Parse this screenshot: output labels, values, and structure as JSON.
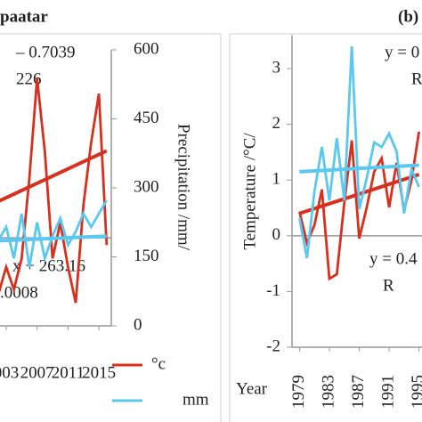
{
  "chart_data": [
    {
      "type": "line",
      "title": "paatar",
      "annotations": [
        "– 0.7039",
        "226",
        "x + 263.16",
        ".0008"
      ],
      "y_label": "Precipitation /mm/",
      "x": [
        2002,
        2003,
        2004,
        2005,
        2006,
        2007,
        2008,
        2009,
        2010,
        2011,
        2012,
        2013,
        2014,
        2015,
        2016
      ],
      "series": [
        {
          "name": "°c",
          "color": "#d7301f",
          "axis": "y2",
          "values": [
            -1.0,
            -0.52,
            -0.92,
            -0.37,
            1.06,
            2.84,
            1.54,
            -0.37,
            0.27,
            -0.52,
            -1.16,
            0.59,
            1.7,
            2.57,
            -0.13
          ],
          "trend": {
            "x": [
              2002,
              2016
            ],
            "values": [
              0.65,
              1.55
            ]
          }
        },
        {
          "name": "mm",
          "color": "#5bc8f0",
          "values": [
            186,
            215,
            147,
            244,
            128,
            225,
            147,
            195,
            234,
            176,
            205,
            244,
            215,
            244,
            273
          ],
          "trend": {
            "x": [
              2002,
              2016
            ],
            "values": [
              185,
              195
            ]
          }
        }
      ],
      "xlim": [
        2002.2,
        2016.6
      ],
      "xticks": [
        {
          "value": 2003,
          "label": "003"
        },
        2007,
        2011,
        2015
      ],
      "ylim": [
        0,
        600
      ],
      "yticks": [
        0,
        150,
        300,
        450,
        600
      ],
      "y2lim": [
        -1.57,
        3.35
      ],
      "legend": "bottom"
    },
    {
      "type": "line",
      "title": "(b)",
      "annotations": [
        "y = 0",
        "R",
        "y = 0.4",
        "R"
      ],
      "y_label": "Temperature /°C/",
      "x_label": "Year",
      "x": [
        1979,
        1980,
        1981,
        1982,
        1983,
        1984,
        1985,
        1986,
        1987,
        1988,
        1989,
        1990,
        1991,
        1992,
        1993,
        1994,
        1995
      ],
      "series": [
        {
          "color": "#d7301f",
          "values": [
            0.43,
            -0.13,
            0.19,
            0.83,
            -0.77,
            -0.69,
            0.59,
            1.71,
            -0.05,
            0.51,
            1.15,
            1.39,
            0.51,
            1.31,
            0.45,
            1.0,
            1.87
          ],
          "trend": {
            "x": [
              1979,
              1995
            ],
            "values": [
              0.4,
              1.1
            ]
          }
        },
        {
          "color": "#5bc8f0",
          "axis": "y2",
          "values": [
            278,
            192,
            335,
            431,
            316,
            450,
            316,
            648,
            297,
            364,
            441,
            431,
            460,
            422,
            288,
            383,
            345
          ],
          "trend": {
            "x": [
              1979,
              1995
            ],
            "values": [
              378,
              392
            ]
          }
        }
      ],
      "xlim": [
        1978,
        1995.4
      ],
      "xticks": [
        1979,
        1983,
        1987,
        1991,
        1995
      ],
      "ylim": [
        -2,
        3.6
      ],
      "yticks": [
        -2,
        -1,
        0,
        1,
        2,
        3
      ],
      "y2lim": [
        0,
        672
      ]
    }
  ]
}
